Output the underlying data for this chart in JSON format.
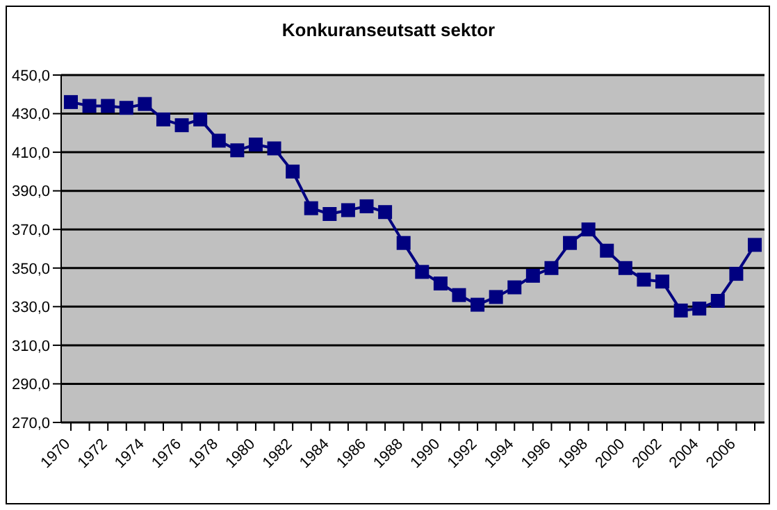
{
  "chart_data": {
    "type": "line",
    "title": "Konkuranseutsatt sektor",
    "categories": [
      "1970",
      null,
      "1972",
      null,
      "1974",
      null,
      "1976",
      null,
      "1978",
      null,
      "1980",
      null,
      "1982",
      null,
      "1984",
      null,
      "1986",
      null,
      "1988",
      null,
      "1990",
      null,
      "1992",
      null,
      "1994",
      null,
      "1996",
      null,
      "1998",
      null,
      "2000",
      null,
      "2002",
      null,
      "2004",
      null,
      "2006",
      null
    ],
    "series": [
      {
        "color": "#000080",
        "values": [
          436,
          434,
          434,
          433,
          435,
          427,
          424,
          427,
          416,
          411,
          414,
          412,
          400,
          381,
          378,
          380,
          382,
          379,
          363,
          348,
          342,
          336,
          331,
          335,
          340,
          346,
          350,
          363,
          370,
          359,
          350,
          344,
          343,
          328,
          329,
          333,
          347,
          362
        ]
      }
    ],
    "ylim": [
      270,
      450
    ],
    "yticks": [
      {
        "value": 270,
        "label": "270,0"
      },
      {
        "value": 290,
        "label": "290,0"
      },
      {
        "value": 310,
        "label": "310,0"
      },
      {
        "value": 330,
        "label": "330,0"
      },
      {
        "value": 350,
        "label": "350,0"
      },
      {
        "value": 370,
        "label": "370,0"
      },
      {
        "value": 390,
        "label": "390,0"
      },
      {
        "value": 410,
        "label": "410,0"
      },
      {
        "value": 430,
        "label": "430,0"
      },
      {
        "value": 450,
        "label": "450,0"
      }
    ],
    "grid": "y",
    "marker": "square",
    "legend": false
  }
}
